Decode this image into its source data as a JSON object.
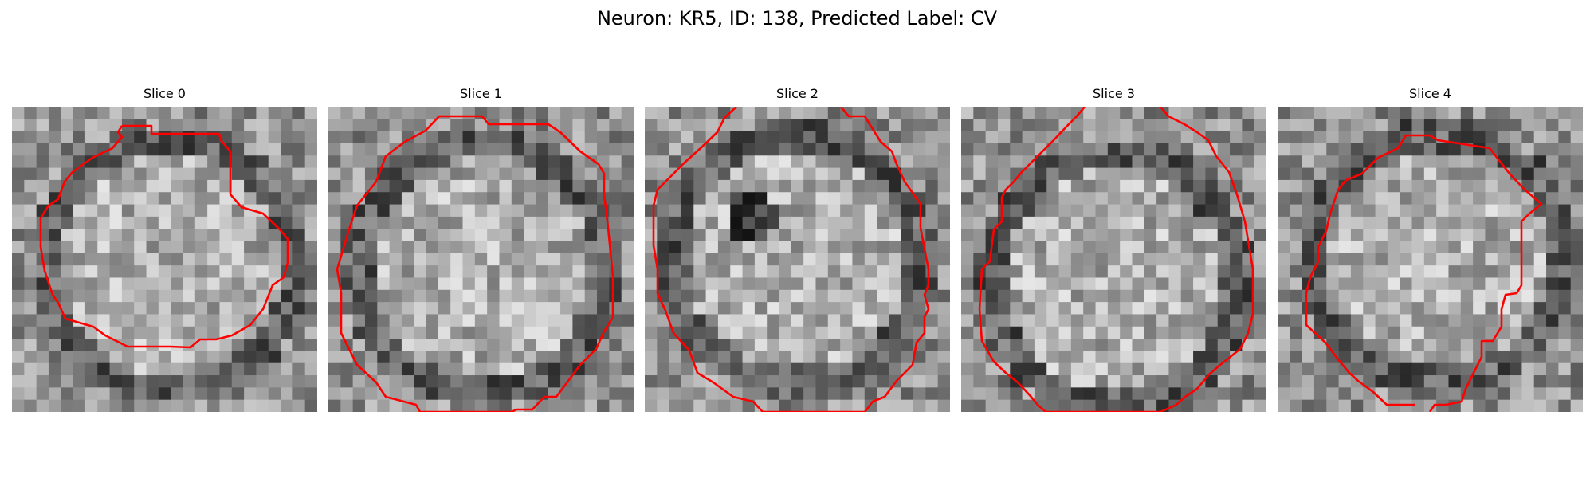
{
  "figure": {
    "title": "Neuron: KR5, ID: 138, Predicted Label: CV"
  },
  "panels": [
    {
      "title": "Slice 0",
      "outline_color": "#ff0000"
    },
    {
      "title": "Slice 1",
      "outline_color": "#ff0000"
    },
    {
      "title": "Slice 2",
      "outline_color": "#ff0000"
    },
    {
      "title": "Slice 3",
      "outline_color": "#ff0000"
    },
    {
      "title": "Slice 4",
      "outline_color": "#ff0000"
    }
  ],
  "image_content": "grayscale microscopy slice of a neuron with red segmentation outline"
}
